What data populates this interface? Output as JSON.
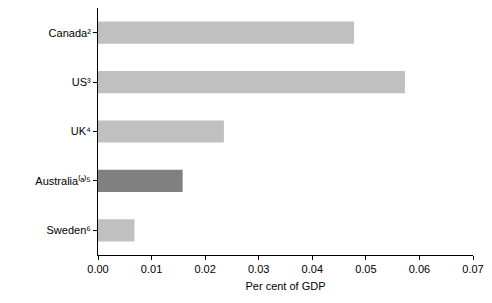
{
  "chart_data": {
    "type": "bar",
    "orientation": "horizontal",
    "categories": [
      "Canada²",
      "US³",
      "UK⁴",
      "Australia⁽ᵃ⁾⁵",
      "Sweden⁶"
    ],
    "values": [
      0.0478,
      0.0573,
      0.0235,
      0.0158,
      0.0068
    ],
    "colors": [
      "#c0c0c0",
      "#c0c0c0",
      "#c0c0c0",
      "#808080",
      "#c0c0c0"
    ],
    "x_label": "Per cent of GDP",
    "xlim": [
      0,
      0.07
    ],
    "xticks": [
      {
        "value": 0,
        "label": "0.00"
      },
      0.01,
      0.02,
      0.03,
      0.04,
      0.05,
      0.06,
      0.07
    ],
    "grid": false
  }
}
